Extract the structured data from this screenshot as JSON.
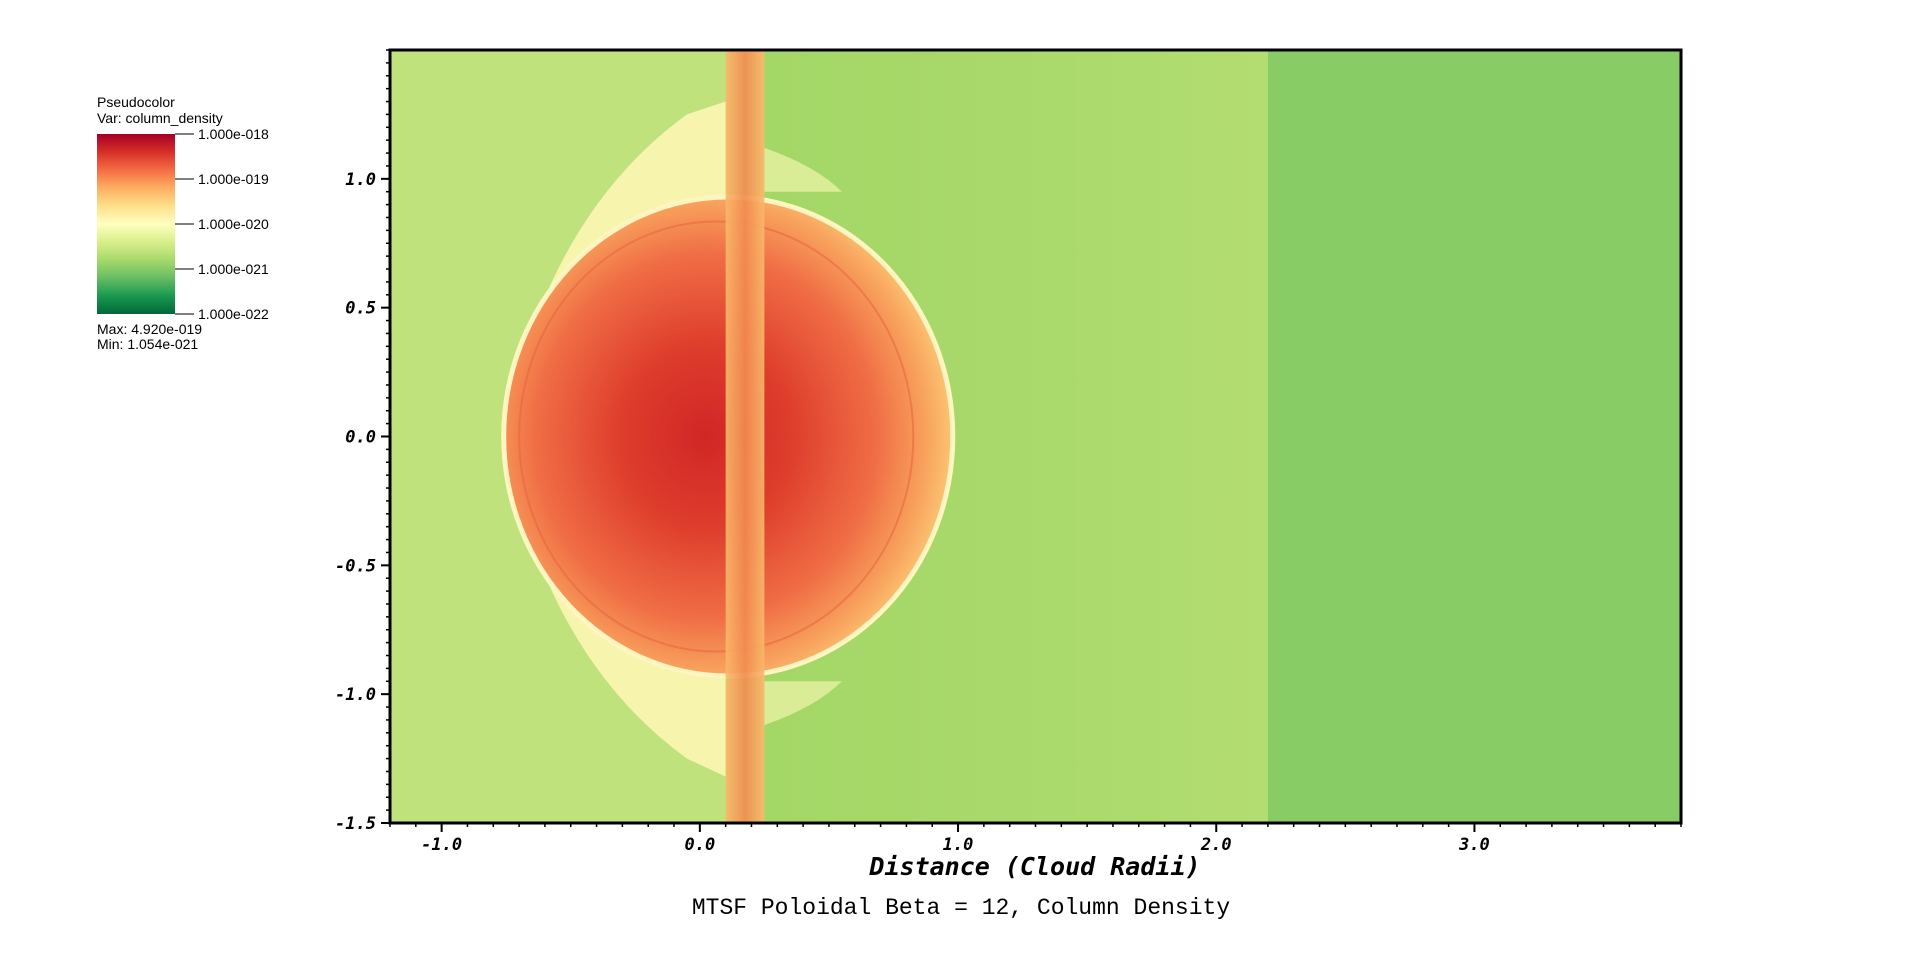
{
  "chart_data": {
    "type": "heatmap",
    "title": "MTSF Poloidal Beta = 12, Column Density",
    "xlabel": "Distance (Cloud Radii)",
    "ylabel": "",
    "xlim": [
      -1.2,
      3.8
    ],
    "ylim": [
      -1.5,
      1.5
    ],
    "x_ticks": [
      "-1.0",
      "0.0",
      "1.0",
      "2.0",
      "3.0"
    ],
    "x_tick_values": [
      -1.0,
      0.0,
      1.0,
      2.0,
      3.0
    ],
    "y_ticks": [
      "-1.5",
      "-1.0",
      "-0.5",
      "0.0",
      "0.5",
      "1.0"
    ],
    "y_tick_values": [
      -1.5,
      -1.0,
      -0.5,
      0.0,
      0.5,
      1.0
    ],
    "legend": {
      "plot_type": "Pseudocolor",
      "variable": "Var: column_density",
      "scale_labels": [
        "1.000e-018",
        "1.000e-019",
        "1.000e-020",
        "1.000e-021",
        "1.000e-022"
      ],
      "max_text": "Max:  4.920e-019",
      "min_text": "Min:  1.054e-021",
      "colormap": [
        "#a50026",
        "#d73027",
        "#f46d43",
        "#fdae61",
        "#fee08b",
        "#ffffbf",
        "#d9ef8b",
        "#a6d96a",
        "#66bd63",
        "#1a9850",
        "#006837"
      ]
    },
    "features": {
      "cloud_center": [
        0.0,
        0.0
      ],
      "cloud_extent_x": [
        -0.75,
        0.97
      ],
      "cloud_extent_y": [
        -0.92,
        0.92
      ],
      "vertical_filament_x": [
        0.1,
        0.25
      ],
      "background_boundary_x": 2.2,
      "colors": {
        "background_left": "#bfe27c",
        "background_mid": "#a9d96b",
        "background_right": "#88cc66",
        "shell_rim": "#fff5c0",
        "cloud_core": "#d22a27"
      }
    }
  }
}
